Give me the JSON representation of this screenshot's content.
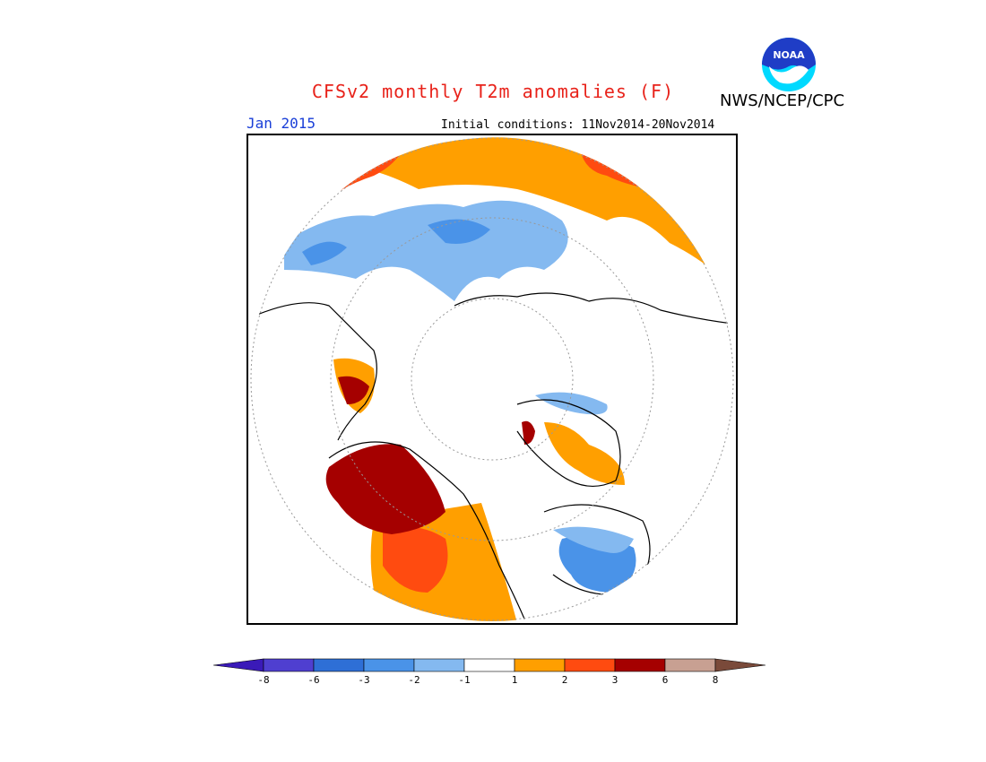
{
  "title": "CFSv2 monthly T2m anomalies (F)",
  "agency": "NWS/NCEP/CPC",
  "logo_text": "NOAA",
  "target_month": "Jan 2015",
  "initial_conditions_label": "Initial conditions:",
  "initial_conditions_range": "11Nov2014-20Nov2014",
  "colorbar": {
    "ticks": [
      "-8",
      "-6",
      "-3",
      "-2",
      "-1",
      "1",
      "2",
      "3",
      "6",
      "8"
    ],
    "bins": [
      {
        "color": "#3a1ab8"
      },
      {
        "color": "#4f3fd0"
      },
      {
        "color": "#2e6fd6"
      },
      {
        "color": "#4a93e8"
      },
      {
        "color": "#84b9f0"
      },
      {
        "color": "#ffffff"
      },
      {
        "color": "#ff9f00"
      },
      {
        "color": "#ff4b10"
      },
      {
        "color": "#a50000"
      },
      {
        "color": "#c8a092"
      },
      {
        "color": "#7a4a3a"
      }
    ]
  },
  "colors": {
    "warm1": "#ff9f00",
    "warm2": "#ff4b10",
    "warm3": "#a50000",
    "warm4": "#c8a092",
    "cool1": "#84b9f0",
    "cool2": "#4a93e8",
    "cool3": "#2e6fd6"
  }
}
